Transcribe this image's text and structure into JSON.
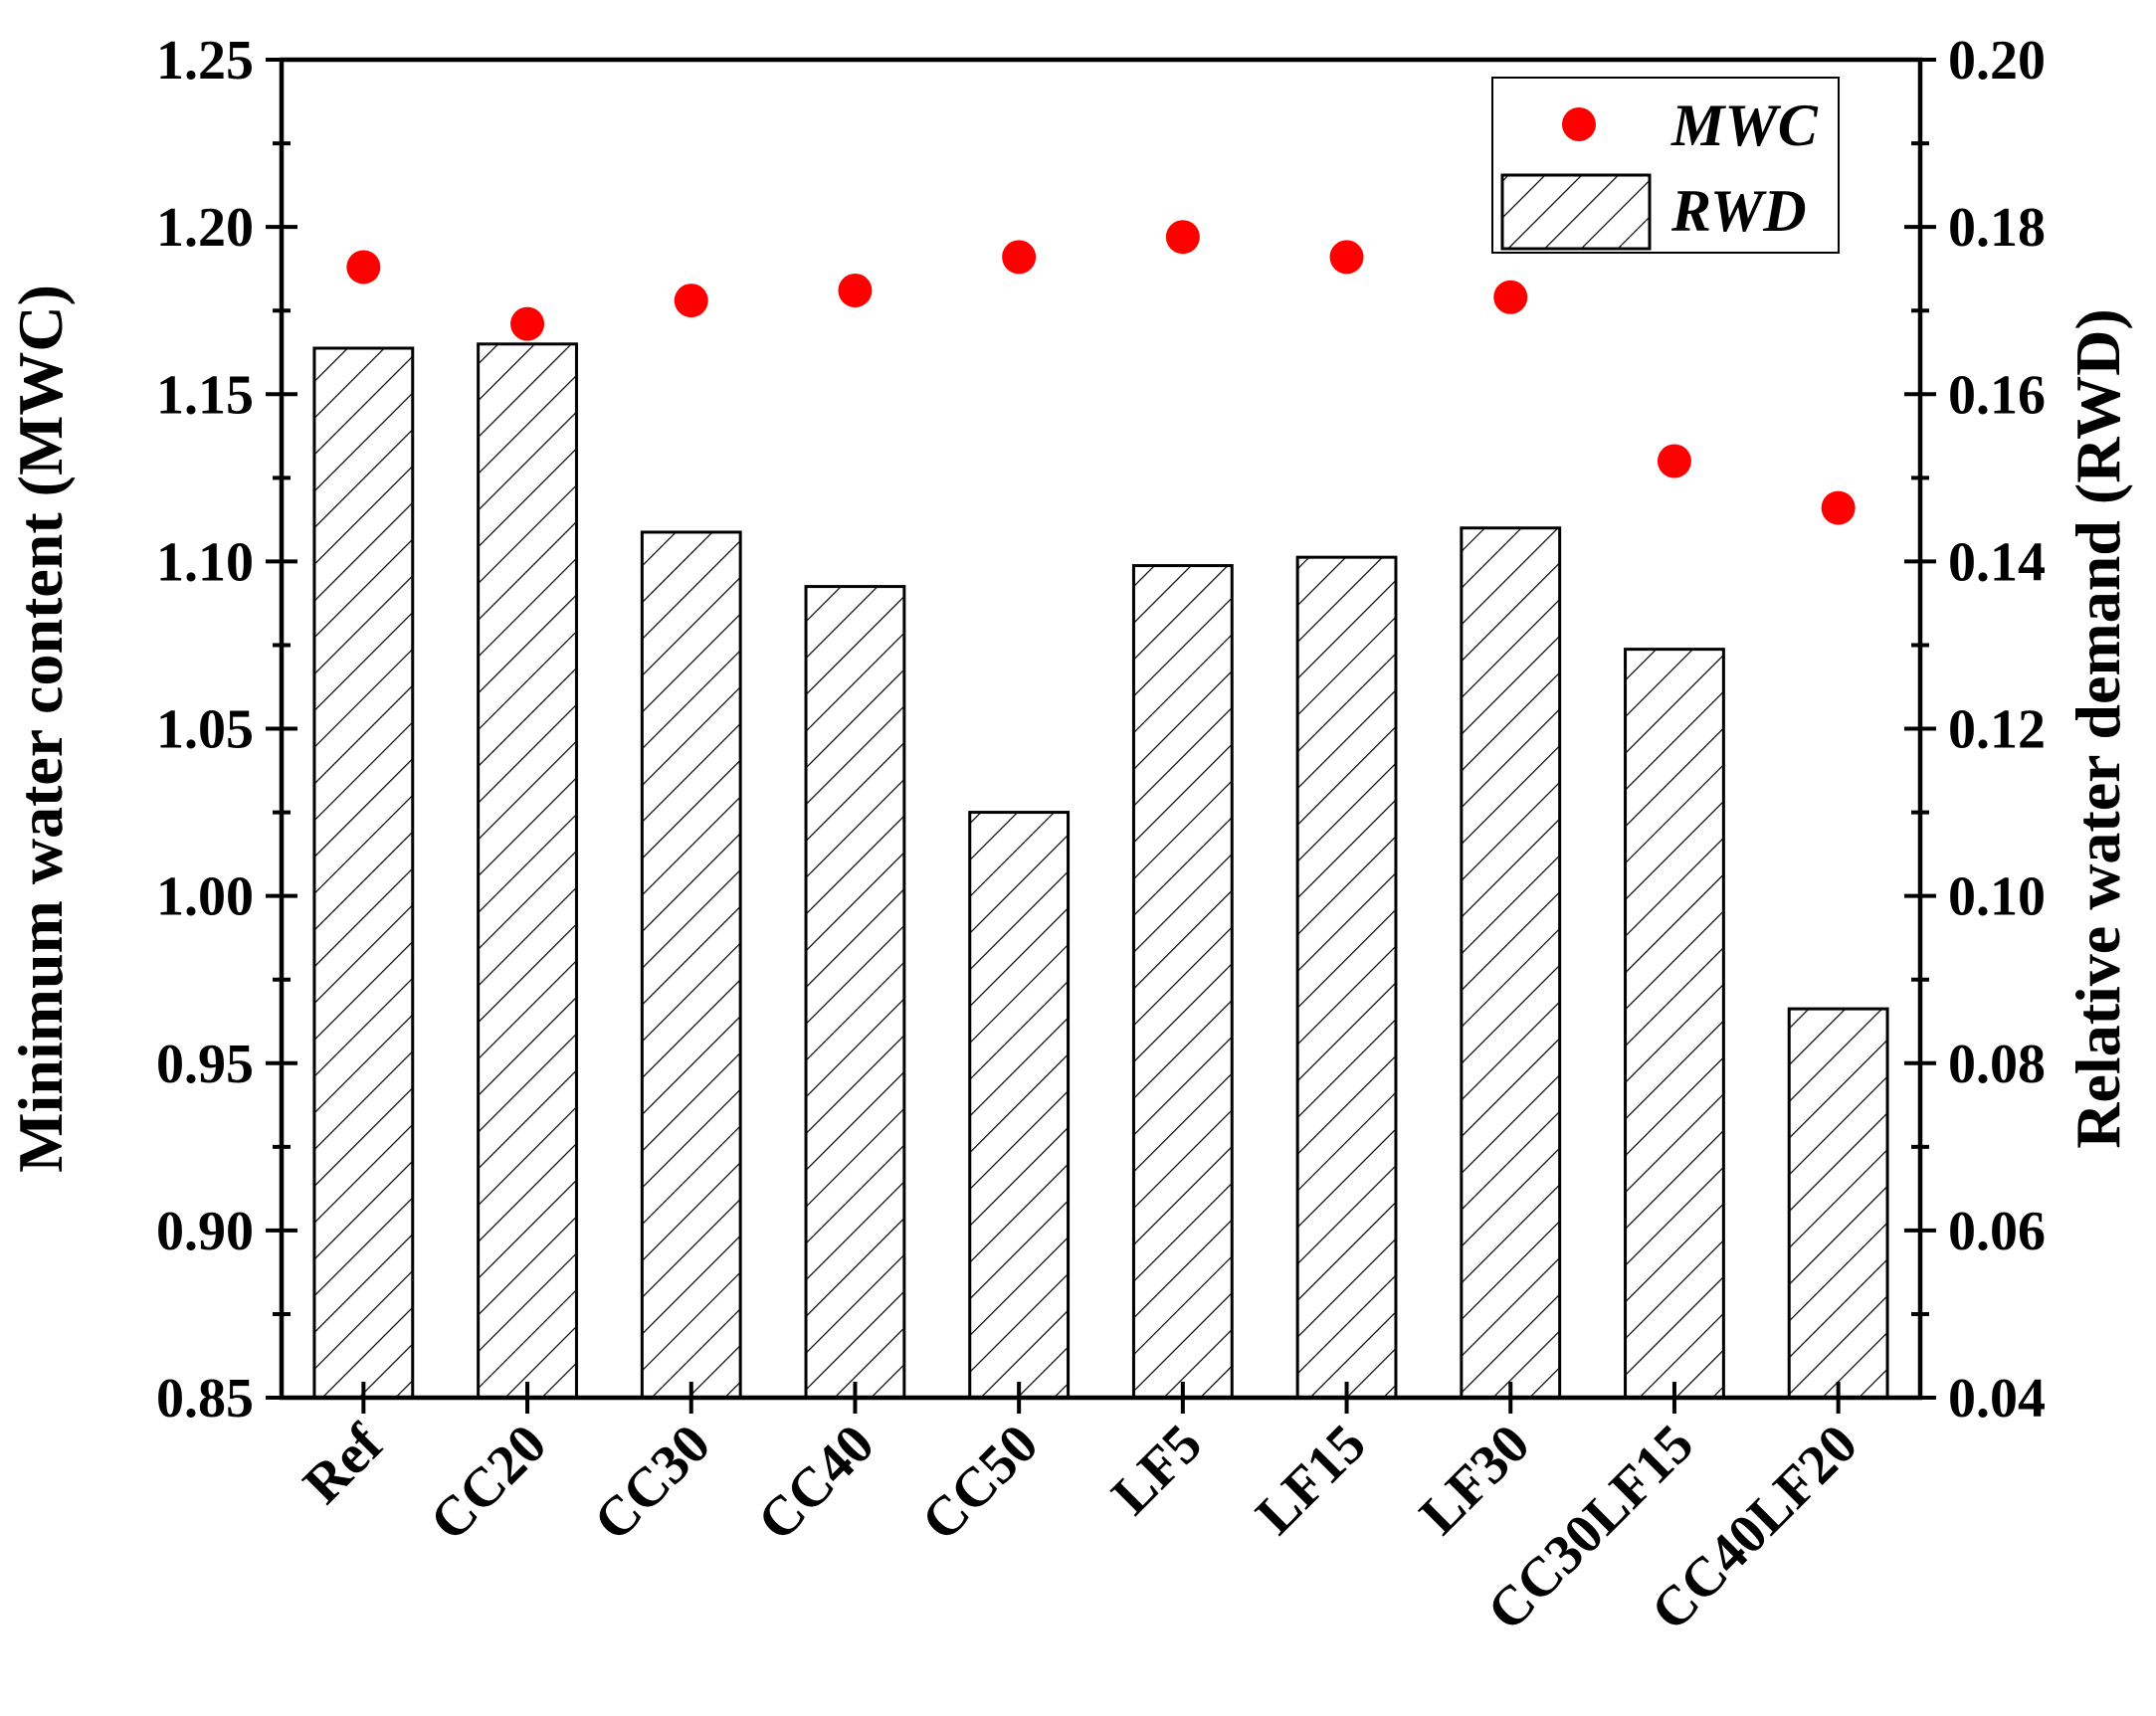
{
  "chart_data": {
    "type": "bar",
    "categories": [
      "Ref",
      "CC20",
      "CC30",
      "CC40",
      "CC50",
      "LF5",
      "LF15",
      "LF30",
      "CC30LF15",
      "CC40LF20"
    ],
    "series": [
      {
        "name": "RWD",
        "type": "bar",
        "axis": "right",
        "pattern": "diagonal-hatch",
        "values": [
          0.1655,
          0.166,
          0.1435,
          0.137,
          0.11,
          0.1395,
          0.1405,
          0.144,
          0.1295,
          0.0865
        ]
      },
      {
        "name": "MWC",
        "type": "scatter",
        "axis": "left",
        "color": "#ff0000",
        "values": [
          1.188,
          1.171,
          1.178,
          1.181,
          1.191,
          1.197,
          1.191,
          1.179,
          1.13,
          1.116
        ]
      }
    ],
    "ylabel_left": "Minimum water content (MWC)",
    "ylabel_right": "Relative water demand (RWD)",
    "ylim_left": [
      0.85,
      1.25
    ],
    "ylim_right": [
      0.04,
      0.2
    ],
    "yticks_left": [
      "0.85",
      "0.90",
      "0.95",
      "1.00",
      "1.05",
      "1.10",
      "1.15",
      "1.20",
      "1.25"
    ],
    "yticks_right": [
      "0.04",
      "0.06",
      "0.08",
      "0.10",
      "0.12",
      "0.14",
      "0.16",
      "0.18",
      "0.20"
    ],
    "legend": {
      "position": "top-right",
      "entries": [
        "MWC",
        "RWD"
      ]
    },
    "grid": false,
    "colors": {
      "marker": "#ff0000",
      "bar_fill": "#ffffff",
      "stroke": "#000000"
    }
  }
}
